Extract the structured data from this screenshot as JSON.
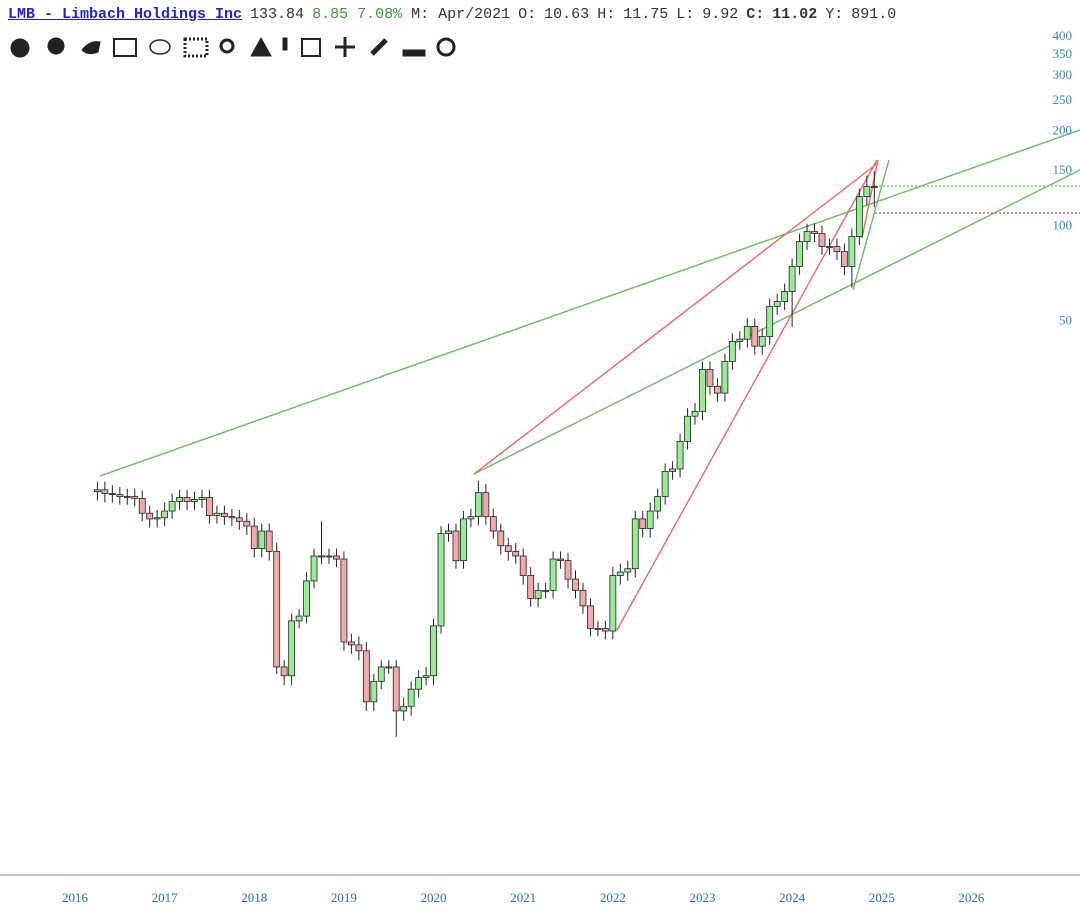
{
  "header": {
    "symbol": "LMB - Limbach Holdings Inc",
    "price": "133.84",
    "change": "8.85",
    "change_pct": "7.08%",
    "period": "M: Apr/2021",
    "o_label": "O:",
    "o": "10.63",
    "h_label": "H:",
    "h": "11.75",
    "l_label": "L:",
    "l": "9.92",
    "c_label": "C:",
    "c": "11.02",
    "y_label": "Y:",
    "y": "891.0"
  },
  "chart_data": {
    "type": "candlestick",
    "log_scale": true,
    "grid": false,
    "up_color": "#98ec98",
    "down_color": "#f2a9a9",
    "ylim": [
      0.9,
      520
    ],
    "yticks": [
      400,
      350,
      300,
      250,
      200,
      150,
      100,
      50
    ],
    "categories": [
      "2016",
      null,
      null,
      null,
      null,
      null,
      null,
      null,
      null,
      null,
      null,
      null,
      "2017",
      null,
      null,
      null,
      null,
      null,
      null,
      null,
      null,
      null,
      null,
      null,
      "2018",
      null,
      null,
      null,
      null,
      null,
      null,
      null,
      null,
      null,
      null,
      null,
      "2019",
      null,
      null,
      null,
      null,
      null,
      null,
      null,
      null,
      null,
      null,
      null,
      "2020",
      null,
      null,
      null,
      null,
      null,
      null,
      null,
      null,
      null,
      null,
      null,
      "2021",
      null,
      null,
      null,
      null,
      null,
      null,
      null,
      null,
      null,
      null,
      null,
      "2022",
      null,
      null,
      null,
      null,
      null,
      null,
      null,
      null,
      null,
      null,
      null,
      "2023",
      null,
      null,
      null,
      null,
      null,
      null,
      null,
      null,
      null,
      null,
      null,
      "2024",
      null,
      null,
      null,
      null,
      null,
      null,
      null,
      null,
      null,
      null,
      null,
      "2025",
      null,
      null,
      null,
      null,
      null,
      null,
      null,
      null,
      null,
      null,
      null,
      "2026",
      null,
      null,
      null,
      null,
      null,
      null,
      null,
      null,
      null,
      null,
      null,
      null,
      null,
      null
    ],
    "open": [
      null,
      null,
      null,
      14.4,
      14.6,
      14.2,
      14.1,
      13.9,
      13.9,
      13.7,
      12.3,
      11.8,
      11.9,
      12.5,
      13.4,
      13.8,
      13.4,
      13.6,
      13.8,
      12.1,
      12.3,
      12.0,
      11.9,
      11.6,
      11.2,
      9.5,
      10.8,
      9.3,
      4.0,
      3.75,
      5.6,
      5.8,
      7.5,
      9.0,
      9.0,
      9.0,
      8.8,
      4.8,
      4.7,
      4.5,
      3.1,
      3.6,
      4.0,
      4.0,
      2.9,
      3.0,
      3.4,
      3.7,
      3.75,
      5.4,
      10.6,
      10.8,
      8.7,
      11.8,
      12.0,
      14.3,
      12.0,
      10.8,
      9.7,
      9.3,
      9.0,
      7.8,
      6.6,
      7.0,
      7.0,
      8.8,
      8.7,
      7.6,
      7.0,
      6.25,
      5.3,
      5.3,
      5.2,
      7.8,
      8.0,
      8.2,
      11.8,
      11.0,
      12.5,
      13.9,
      16.7,
      17.0,
      20.8,
      25.0,
      25.9,
      35.2,
      31.1,
      29.6,
      37.3,
      43.2,
      43.9,
      48.2,
      41.7,
      44.8,
      55.8,
      57.8,
      62.2,
      74.7,
      89.6,
      96.4,
      95.0,
      86.4,
      86.4,
      83.3,
      74.7,
      93.0,
      124.5,
      133.9,
      null,
      null,
      null,
      null,
      null,
      null,
      null,
      null,
      null,
      null,
      null,
      null,
      null,
      null,
      null,
      null,
      null,
      null,
      null,
      null,
      null,
      null,
      null,
      null,
      null,
      null,
      null
    ],
    "high": [
      null,
      null,
      null,
      15.5,
      15.5,
      15.1,
      14.9,
      14.7,
      14.7,
      14.5,
      13.0,
      12.6,
      13.3,
      14.2,
      14.6,
      14.6,
      14.4,
      14.6,
      14.6,
      13.0,
      13.0,
      12.7,
      12.6,
      12.3,
      11.9,
      11.4,
      11.4,
      9.9,
      4.2,
      5.9,
      6.1,
      8.0,
      9.5,
      11.6,
      9.5,
      9.5,
      9.3,
      5.1,
      5.0,
      4.8,
      3.8,
      4.2,
      4.2,
      4.2,
      3.2,
      3.6,
      3.9,
      4.0,
      5.7,
      11.2,
      11.4,
      11.4,
      12.5,
      12.7,
      15.6,
      15.2,
      12.7,
      11.4,
      10.3,
      9.9,
      9.5,
      8.3,
      7.4,
      7.4,
      9.3,
      9.3,
      9.2,
      8.1,
      7.4,
      6.6,
      5.6,
      5.6,
      8.3,
      8.5,
      8.7,
      12.5,
      12.5,
      13.3,
      14.7,
      17.7,
      18.0,
      22.0,
      26.5,
      27.5,
      37.3,
      37.3,
      33.0,
      39.5,
      45.8,
      46.5,
      51.1,
      51.1,
      47.5,
      59.1,
      61.3,
      65.9,
      79.2,
      95.0,
      102.2,
      102.2,
      100.7,
      91.6,
      91.6,
      88.3,
      98.6,
      132.0,
      145.0,
      150.0,
      null,
      null,
      null,
      null,
      null,
      null,
      null,
      null,
      null,
      null,
      null,
      null,
      null,
      null,
      null,
      null,
      null,
      null,
      null,
      null,
      null,
      null,
      null,
      null,
      null,
      null,
      null
    ],
    "low": [
      null,
      null,
      null,
      13.5,
      13.3,
      13.3,
      13.1,
      13.1,
      12.9,
      11.6,
      11.1,
      11.1,
      11.2,
      11.8,
      12.6,
      12.6,
      12.6,
      12.8,
      11.4,
      11.4,
      11.3,
      11.2,
      10.9,
      10.5,
      8.9,
      8.9,
      8.7,
      3.8,
      3.5,
      3.5,
      5.3,
      5.5,
      7.1,
      8.5,
      8.5,
      8.3,
      4.5,
      4.4,
      4.2,
      2.9,
      2.9,
      3.4,
      3.8,
      2.4,
      2.7,
      2.8,
      3.2,
      3.5,
      3.5,
      5.1,
      10.0,
      8.2,
      8.2,
      11.1,
      11.3,
      11.3,
      10.2,
      9.1,
      8.7,
      8.5,
      7.3,
      6.2,
      6.2,
      6.6,
      6.6,
      8.2,
      7.1,
      6.6,
      5.9,
      5.0,
      5.0,
      4.9,
      4.9,
      7.3,
      7.5,
      7.7,
      10.3,
      10.3,
      11.8,
      13.1,
      15.7,
      16.0,
      19.6,
      23.5,
      24.3,
      29.2,
      27.8,
      27.8,
      35.1,
      40.6,
      41.3,
      39.2,
      39.2,
      42.1,
      52.5,
      54.3,
      48.0,
      70.2,
      84.2,
      89.3,
      81.2,
      81.2,
      78.3,
      70.2,
      64.0,
      87.4,
      117.0,
      115.0,
      null,
      null,
      null,
      null,
      null,
      null,
      null,
      null,
      null,
      null,
      null,
      null,
      null,
      null,
      null,
      null,
      null,
      null,
      null,
      null,
      null,
      null,
      null,
      null,
      null,
      null,
      null
    ],
    "close": [
      null,
      null,
      null,
      14.6,
      14.2,
      14.1,
      13.9,
      13.9,
      13.7,
      12.3,
      11.8,
      11.9,
      12.5,
      13.4,
      13.8,
      13.4,
      13.6,
      13.8,
      12.1,
      12.3,
      12.0,
      11.9,
      11.6,
      11.2,
      9.5,
      10.8,
      9.3,
      4.0,
      3.75,
      5.6,
      5.8,
      7.5,
      9.0,
      9.0,
      9.0,
      8.8,
      4.8,
      4.7,
      4.5,
      3.1,
      3.6,
      4.0,
      4.0,
      2.9,
      3.0,
      3.4,
      3.7,
      3.75,
      5.4,
      10.6,
      10.8,
      8.7,
      11.8,
      12.0,
      14.3,
      12.0,
      10.8,
      9.7,
      9.3,
      9.0,
      7.8,
      6.6,
      7.0,
      7.0,
      8.8,
      8.7,
      7.6,
      7.0,
      6.25,
      5.3,
      5.3,
      5.2,
      7.8,
      8.0,
      8.2,
      11.8,
      11.0,
      12.5,
      13.9,
      16.7,
      17.0,
      20.8,
      25.0,
      25.9,
      35.2,
      31.1,
      29.6,
      37.3,
      43.2,
      43.9,
      48.2,
      41.7,
      44.8,
      55.8,
      57.8,
      62.2,
      74.7,
      89.6,
      96.4,
      95.0,
      86.4,
      86.4,
      83.3,
      74.7,
      93.0,
      124.5,
      133.9,
      133.8,
      null,
      null,
      null,
      null,
      null,
      null,
      null,
      null,
      null,
      null,
      null,
      null,
      null,
      null,
      null,
      null,
      null,
      null,
      null,
      null,
      null,
      null,
      null,
      null,
      null,
      null,
      null
    ]
  }
}
